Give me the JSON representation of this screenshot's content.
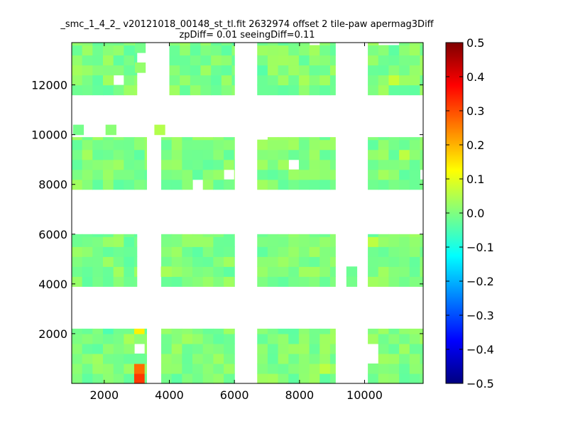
{
  "chart_data": {
    "type": "heatmap",
    "title_line1": "_smc_1_4_2_ v20121018_00148_st_tl.fit 2632974 offset 2 tile-paw apermag3Diff",
    "title_line2": "zpDiff= 0.01 seeingDiff=0.11",
    "xlabel": "",
    "ylabel": "",
    "xlim": [
      1000,
      11800
    ],
    "ylim": [
      0,
      13700
    ],
    "xticks": [
      2000,
      4000,
      6000,
      8000,
      10000
    ],
    "xtick_labels": [
      "2000",
      "4000",
      "6000",
      "8000",
      "10000"
    ],
    "yticks": [
      2000,
      4000,
      6000,
      8000,
      10000,
      12000
    ],
    "ytick_labels": [
      "2000",
      "4000",
      "6000",
      "8000",
      "10000",
      "12000"
    ],
    "colormap": "jet",
    "colorbar": {
      "vmin": -0.5,
      "vmax": 0.5,
      "ticks": [
        0.5,
        0.4,
        0.3,
        0.2,
        0.1,
        0.0,
        -0.1,
        -0.2,
        -0.3,
        -0.4,
        -0.5
      ],
      "tick_labels": [
        "0.5",
        "0.4",
        "0.3",
        "0.2",
        "0.1",
        "0.0",
        "−0.1",
        "−0.2",
        "−0.3",
        "−0.4",
        "−0.5"
      ]
    },
    "cell_size": [
      320,
      400
    ],
    "default_value": 0.0,
    "blocks": [
      {
        "x": [
          1000,
          3000
        ],
        "y": [
          11600,
          13700
        ]
      },
      {
        "x": [
          4000,
          6000
        ],
        "y": [
          11600,
          13700
        ]
      },
      {
        "x": [
          6700,
          9100
        ],
        "y": [
          11600,
          13700
        ]
      },
      {
        "x": [
          10100,
          11800
        ],
        "y": [
          11600,
          13700
        ]
      },
      {
        "x": [
          1000,
          3300
        ],
        "y": [
          7800,
          9900
        ]
      },
      {
        "x": [
          3750,
          6000
        ],
        "y": [
          7800,
          9900
        ]
      },
      {
        "x": [
          6700,
          9100
        ],
        "y": [
          7800,
          9900
        ]
      },
      {
        "x": [
          10100,
          11800
        ],
        "y": [
          7800,
          9900
        ]
      },
      {
        "x": [
          1000,
          3000
        ],
        "y": [
          3900,
          6000
        ]
      },
      {
        "x": [
          3750,
          6000
        ],
        "y": [
          3900,
          6000
        ]
      },
      {
        "x": [
          6700,
          9100
        ],
        "y": [
          3900,
          6000
        ]
      },
      {
        "x": [
          10100,
          11800
        ],
        "y": [
          3900,
          6000
        ]
      },
      {
        "x": [
          1000,
          3300
        ],
        "y": [
          0,
          2200
        ]
      },
      {
        "x": [
          3750,
          6000
        ],
        "y": [
          0,
          2200
        ]
      },
      {
        "x": [
          6700,
          9100
        ],
        "y": [
          0,
          2200
        ]
      },
      {
        "x": [
          10100,
          11800
        ],
        "y": [
          0,
          2200
        ]
      }
    ],
    "highlight_cells": [
      {
        "x": 3150,
        "y": 200,
        "value": 0.32
      },
      {
        "x": 3150,
        "y": 600,
        "value": 0.27
      },
      {
        "x": 3150,
        "y": 2000,
        "value": 0.14
      },
      {
        "x": 2200,
        "y": 2000,
        "value": -0.05
      },
      {
        "x": 2700,
        "y": 1600,
        "value": 0.04
      },
      {
        "x": 8900,
        "y": 600,
        "value": 0.06
      },
      {
        "x": 2500,
        "y": 8600,
        "value": 0.03
      },
      {
        "x": 5300,
        "y": 8600,
        "value": -0.03
      },
      {
        "x": 11100,
        "y": 9000,
        "value": 0.06
      },
      {
        "x": 10300,
        "y": 5800,
        "value": 0.06
      },
      {
        "x": 3700,
        "y": 10200,
        "value": 0.05
      },
      {
        "x": 8200,
        "y": 12300,
        "value": 0.04
      },
      {
        "x": 11000,
        "y": 12000,
        "value": 0.07
      },
      {
        "x": 5200,
        "y": 12400,
        "value": 0.03
      },
      {
        "x": 6800,
        "y": 12400,
        "value": -0.04
      }
    ],
    "extra_cells": [
      {
        "x": 1200,
        "y": 10200,
        "value": -0.01
      },
      {
        "x": 2200,
        "y": 10200,
        "value": 0.01
      },
      {
        "x": 3700,
        "y": 10200,
        "value": 0.05
      },
      {
        "x": 3900,
        "y": 4500,
        "value": 0.04
      },
      {
        "x": 9600,
        "y": 4500,
        "value": -0.02
      },
      {
        "x": 9600,
        "y": 4100,
        "value": -0.01
      },
      {
        "x": 3100,
        "y": 12700,
        "value": 0.02
      },
      {
        "x": 3100,
        "y": 13500,
        "value": -0.01
      }
    ],
    "holes": [
      {
        "x": 2500,
        "y": 12300
      },
      {
        "x": 3100,
        "y": 1300
      },
      {
        "x": 4900,
        "y": 7900
      },
      {
        "x": 5800,
        "y": 8400
      },
      {
        "x": 6800,
        "y": 9800
      },
      {
        "x": 7800,
        "y": 8800
      },
      {
        "x": 10100,
        "y": 1000
      },
      {
        "x": 10100,
        "y": 1400
      },
      {
        "x": 11700,
        "y": 8200
      },
      {
        "x": 10500,
        "y": 13600
      },
      {
        "x": 10900,
        "y": 13600
      },
      {
        "x": 8500,
        "y": 13600
      },
      {
        "x": 9800,
        "y": 4500
      }
    ]
  }
}
